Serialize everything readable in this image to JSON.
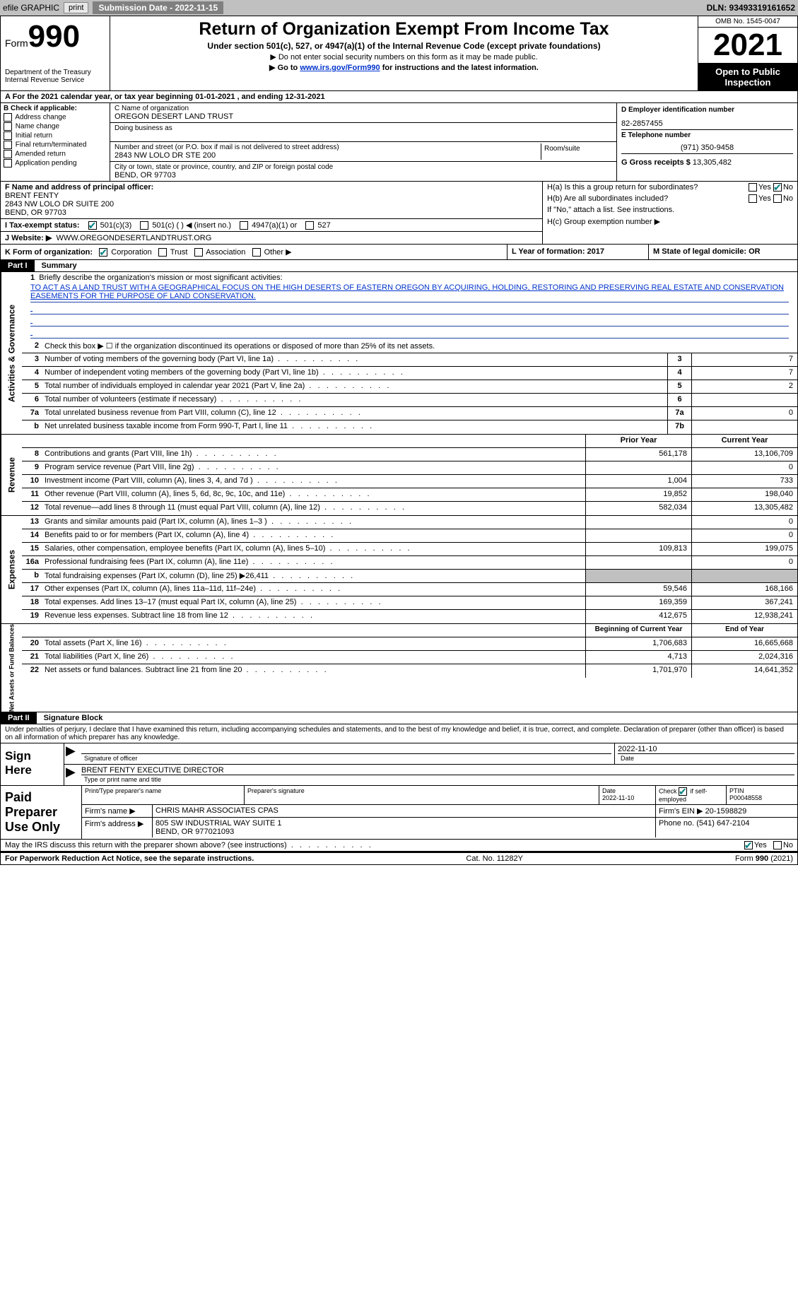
{
  "topbar": {
    "efile": "efile GRAPHIC",
    "print": "print",
    "subdate_label": "Submission Date - 2022-11-15",
    "dln": "DLN: 93493319161652"
  },
  "header": {
    "form_word": "Form",
    "form_num": "990",
    "dept": "Department of the Treasury",
    "irs": "Internal Revenue Service",
    "title": "Return of Organization Exempt From Income Tax",
    "subtitle": "Under section 501(c), 527, or 4947(a)(1) of the Internal Revenue Code (except private foundations)",
    "note1": "▶ Do not enter social security numbers on this form as it may be made public.",
    "note2_a": "▶ Go to ",
    "note2_link": "www.irs.gov/Form990",
    "note2_b": " for instructions and the latest information.",
    "omb": "OMB No. 1545-0047",
    "year": "2021",
    "open": "Open to Public Inspection"
  },
  "line_a": "A For the 2021 calendar year, or tax year beginning 01-01-2021    , and ending 12-31-2021",
  "col_b": {
    "hdr": "B Check if applicable:",
    "items": [
      "Address change",
      "Name change",
      "Initial return",
      "Final return/terminated",
      "Amended return",
      "Application pending"
    ]
  },
  "col_c": {
    "name_lbl": "C Name of organization",
    "name": "OREGON DESERT LAND TRUST",
    "dba_lbl": "Doing business as",
    "addr_lbl": "Number and street (or P.O. box if mail is not delivered to street address)",
    "room_lbl": "Room/suite",
    "addr": "2843 NW LOLO DR STE 200",
    "city_lbl": "City or town, state or province, country, and ZIP or foreign postal code",
    "city": "BEND, OR  97703"
  },
  "col_d": {
    "ein_lbl": "D Employer identification number",
    "ein": "82-2857455",
    "tel_lbl": "E Telephone number",
    "tel": "(971) 350-9458",
    "gross_lbl": "G Gross receipts $",
    "gross": "13,305,482"
  },
  "fhij": {
    "f_lbl": "F Name and address of principal officer:",
    "f1": "BRENT FENTY",
    "f2": "2843 NW LOLO DR SUITE 200",
    "f3": "BEND, OR  97703",
    "i_lbl": "I    Tax-exempt status:",
    "i_501c3": "501(c)(3)",
    "i_501c": "501(c) (  ) ◀ (insert no.)",
    "i_4947": "4947(a)(1) or",
    "i_527": "527",
    "j_lbl": "J    Website: ▶",
    "j_val": "WWW.OREGONDESERTLANDTRUST.ORG",
    "ha": "H(a)  Is this a group return for subordinates?",
    "hb": "H(b)  Are all subordinates included?",
    "hb_note": "If \"No,\" attach a list. See instructions.",
    "hc": "H(c)  Group exemption number ▶",
    "yes": "Yes",
    "no": "No"
  },
  "row_kl": {
    "k": "K Form of organization:",
    "k_corp": "Corporation",
    "k_trust": "Trust",
    "k_assoc": "Association",
    "k_other": "Other ▶",
    "l": "L Year of formation: 2017",
    "m": "M State of legal domicile: OR"
  },
  "part1": {
    "label": "Part I",
    "title": "Summary"
  },
  "summary": {
    "l1_lbl": "Briefly describe the organization's mission or most significant activities:",
    "l1_text": "TO ACT AS A LAND TRUST WITH A GEOGRAPHICAL FOCUS ON THE HIGH DESERTS OF EASTERN OREGON BY ACQUIRING, HOLDING, RESTORING AND PRESERVING REAL ESTATE AND CONSERVATION EASEMENTS FOR THE PURPOSE OF LAND CONSERVATION.",
    "l2": "Check this box ▶ ☐  if the organization discontinued its operations or disposed of more than 25% of its net assets.",
    "rows_a": [
      {
        "n": "3",
        "d": "Number of voting members of the governing body (Part VI, line 1a)",
        "b": "3",
        "v": "7"
      },
      {
        "n": "4",
        "d": "Number of independent voting members of the governing body (Part VI, line 1b)",
        "b": "4",
        "v": "7"
      },
      {
        "n": "5",
        "d": "Total number of individuals employed in calendar year 2021 (Part V, line 2a)",
        "b": "5",
        "v": "2"
      },
      {
        "n": "6",
        "d": "Total number of volunteers (estimate if necessary)",
        "b": "6",
        "v": ""
      },
      {
        "n": "7a",
        "d": "Total unrelated business revenue from Part VIII, column (C), line 12",
        "b": "7a",
        "v": "0"
      },
      {
        "n": "b",
        "d": "Net unrelated business taxable income from Form 990-T, Part I, line 11",
        "b": "7b",
        "v": ""
      }
    ],
    "hdr_prior": "Prior Year",
    "hdr_curr": "Current Year",
    "rev_rows": [
      {
        "n": "8",
        "d": "Contributions and grants (Part VIII, line 1h)",
        "p": "561,178",
        "c": "13,106,709"
      },
      {
        "n": "9",
        "d": "Program service revenue (Part VIII, line 2g)",
        "p": "",
        "c": "0"
      },
      {
        "n": "10",
        "d": "Investment income (Part VIII, column (A), lines 3, 4, and 7d )",
        "p": "1,004",
        "c": "733"
      },
      {
        "n": "11",
        "d": "Other revenue (Part VIII, column (A), lines 5, 6d, 8c, 9c, 10c, and 11e)",
        "p": "19,852",
        "c": "198,040"
      },
      {
        "n": "12",
        "d": "Total revenue—add lines 8 through 11 (must equal Part VIII, column (A), line 12)",
        "p": "582,034",
        "c": "13,305,482"
      }
    ],
    "exp_rows": [
      {
        "n": "13",
        "d": "Grants and similar amounts paid (Part IX, column (A), lines 1–3 )",
        "p": "",
        "c": "0"
      },
      {
        "n": "14",
        "d": "Benefits paid to or for members (Part IX, column (A), line 4)",
        "p": "",
        "c": "0"
      },
      {
        "n": "15",
        "d": "Salaries, other compensation, employee benefits (Part IX, column (A), lines 5–10)",
        "p": "109,813",
        "c": "199,075"
      },
      {
        "n": "16a",
        "d": "Professional fundraising fees (Part IX, column (A), line 11e)",
        "p": "",
        "c": "0"
      },
      {
        "n": "b",
        "d": "Total fundraising expenses (Part IX, column (D), line 25) ▶26,411",
        "p": "SHADE",
        "c": "SHADE"
      },
      {
        "n": "17",
        "d": "Other expenses (Part IX, column (A), lines 11a–11d, 11f–24e)",
        "p": "59,546",
        "c": "168,166"
      },
      {
        "n": "18",
        "d": "Total expenses. Add lines 13–17 (must equal Part IX, column (A), line 25)",
        "p": "169,359",
        "c": "367,241"
      },
      {
        "n": "19",
        "d": "Revenue less expenses. Subtract line 18 from line 12",
        "p": "412,675",
        "c": "12,938,241"
      }
    ],
    "na_hdr_prior": "Beginning of Current Year",
    "na_hdr_curr": "End of Year",
    "na_rows": [
      {
        "n": "20",
        "d": "Total assets (Part X, line 16)",
        "p": "1,706,683",
        "c": "16,665,668"
      },
      {
        "n": "21",
        "d": "Total liabilities (Part X, line 26)",
        "p": "4,713",
        "c": "2,024,316"
      },
      {
        "n": "22",
        "d": "Net assets or fund balances. Subtract line 21 from line 20",
        "p": "1,701,970",
        "c": "14,641,352"
      }
    ]
  },
  "sides": {
    "act": "Activities & Governance",
    "rev": "Revenue",
    "exp": "Expenses",
    "na": "Net Assets or Fund Balances"
  },
  "part2": {
    "label": "Part II",
    "title": "Signature Block",
    "intro": "Under penalties of perjury, I declare that I have examined this return, including accompanying schedules and statements, and to the best of my knowledge and belief, it is true, correct, and complete. Declaration of preparer (other than officer) is based on all information of which preparer has any knowledge.",
    "sign_here": "Sign Here",
    "sig_date": "2022-11-10",
    "sig_cap1": "Signature of officer",
    "sig_cap2": "Date",
    "name_title": "BRENT FENTY  EXECUTIVE DIRECTOR",
    "name_cap": "Type or print name and title"
  },
  "prep": {
    "label": "Paid Preparer Use Only",
    "h1": "Print/Type preparer's name",
    "h2": "Preparer's signature",
    "h3_lbl": "Date",
    "h3": "2022-11-10",
    "h4": "Check ☑ if self-employed",
    "h5_lbl": "PTIN",
    "h5": "P00048558",
    "firm_lbl": "Firm's name    ▶",
    "firm": "CHRIS MAHR ASSOCIATES CPAS",
    "ein_lbl": "Firm's EIN ▶",
    "ein": "20-1598829",
    "addr_lbl": "Firm's address ▶",
    "addr1": "805 SW INDUSTRIAL WAY SUITE 1",
    "addr2": "BEND, OR  977021093",
    "phone_lbl": "Phone no.",
    "phone": "(541) 647-2104"
  },
  "bottom": {
    "q": "May the IRS discuss this return with the preparer shown above? (see instructions)",
    "yes": "Yes",
    "no": "No",
    "pra": "For Paperwork Reduction Act Notice, see the separate instructions.",
    "cat": "Cat. No. 11282Y",
    "form": "Form 990 (2021)"
  }
}
